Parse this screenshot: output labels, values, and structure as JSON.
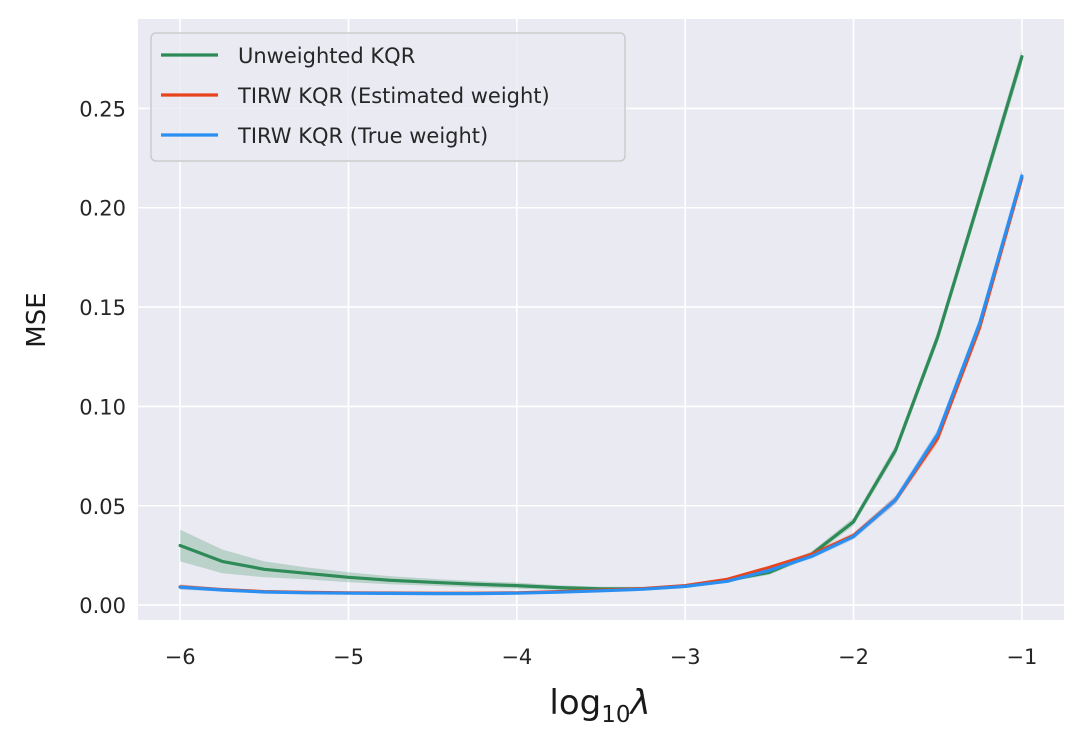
{
  "chart_data": {
    "type": "line",
    "title": "",
    "xlabel": "log",
    "xlabel_sub": "10",
    "xlabel_symbol": "λ",
    "ylabel": "MSE",
    "xlim": [
      -6.25,
      -0.75
    ],
    "ylim": [
      -0.0075,
      0.295
    ],
    "x_ticks": [
      -6,
      -5,
      -4,
      -3,
      -2,
      -1
    ],
    "x_tick_labels": [
      "−6",
      "−5",
      "−4",
      "−3",
      "−2",
      "−1"
    ],
    "y_ticks": [
      0.0,
      0.05,
      0.1,
      0.15,
      0.2,
      0.25
    ],
    "y_tick_labels": [
      "0.00",
      "0.05",
      "0.10",
      "0.15",
      "0.20",
      "0.25"
    ],
    "grid": true,
    "legend_position": "top-left",
    "x": [
      -6.0,
      -5.75,
      -5.5,
      -5.25,
      -5.0,
      -4.75,
      -4.5,
      -4.25,
      -4.0,
      -3.75,
      -3.5,
      -3.25,
      -3.0,
      -2.75,
      -2.5,
      -2.25,
      -2.0,
      -1.75,
      -1.5,
      -1.25,
      -1.0
    ],
    "series": [
      {
        "name": "Unweighted KQR",
        "color": "#2e8b57",
        "values": [
          0.03,
          0.022,
          0.018,
          0.016,
          0.014,
          0.0125,
          0.0115,
          0.0105,
          0.0098,
          0.0088,
          0.0082,
          0.0082,
          0.0095,
          0.0125,
          0.0165,
          0.0255,
          0.042,
          0.078,
          0.135,
          0.205,
          0.276
        ],
        "band_halfwidth": [
          0.008,
          0.006,
          0.004,
          0.003,
          0.0025,
          0.002,
          0.0018,
          0.0016,
          0.0015,
          0.0012,
          0.001,
          0.001,
          0.001,
          0.001,
          0.0012,
          0.0015,
          0.002,
          0.0025,
          0.003,
          0.0035,
          0.004
        ]
      },
      {
        "name": "TIRW KQR (Estimated weight)",
        "color": "#e8451e",
        "values": [
          0.0092,
          0.0078,
          0.0068,
          0.0064,
          0.0062,
          0.0061,
          0.006,
          0.006,
          0.0062,
          0.0068,
          0.0075,
          0.0083,
          0.0098,
          0.013,
          0.019,
          0.0255,
          0.035,
          0.053,
          0.084,
          0.14,
          0.215
        ],
        "band_halfwidth": [
          0.0012,
          0.0008,
          0.0006,
          0.0005,
          0.0005,
          0.0005,
          0.0005,
          0.0005,
          0.0005,
          0.0005,
          0.0005,
          0.0005,
          0.0006,
          0.0007,
          0.0009,
          0.0012,
          0.0015,
          0.002,
          0.0025,
          0.003,
          0.0035
        ]
      },
      {
        "name": "TIRW KQR (True weight)",
        "color": "#2a8ff0",
        "values": [
          0.009,
          0.0076,
          0.0066,
          0.0062,
          0.006,
          0.0059,
          0.0058,
          0.0058,
          0.006,
          0.0065,
          0.0072,
          0.008,
          0.0094,
          0.012,
          0.0175,
          0.0245,
          0.0345,
          0.053,
          0.086,
          0.142,
          0.216
        ],
        "band_halfwidth": [
          0.0012,
          0.0008,
          0.0006,
          0.0005,
          0.0005,
          0.0005,
          0.0005,
          0.0005,
          0.0005,
          0.0005,
          0.0005,
          0.0005,
          0.0006,
          0.0007,
          0.0009,
          0.0012,
          0.0015,
          0.002,
          0.0025,
          0.003,
          0.0035
        ]
      }
    ]
  }
}
